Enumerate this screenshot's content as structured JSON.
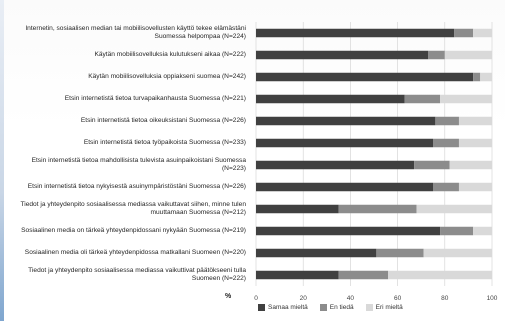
{
  "chart_data": {
    "type": "bar",
    "stacked": true,
    "orientation": "horizontal",
    "x_axis_label": "%",
    "xlim": [
      0,
      100
    ],
    "x_ticks": [
      "0",
      "20",
      "40",
      "60",
      "80",
      "100"
    ],
    "grid": true,
    "legend_position": "bottom",
    "categories": [
      "Internetin, sosiaalisen median tai mobiilisovellusten käyttö tekee elämästäni Suomessa helpompaa (N=224)",
      "Käytän mobiilisovelluksia kulutukseni aikaa (N=222)",
      "Käytän mobiilisovelluksia oppiakseni suomea (N=242)",
      "Etsin internetistä tietoa turvapaikanhausta Suomessa (N=221)",
      "Etsin internetistä tietoa oikeuksistani Suomessa (N=226)",
      "Etsin internetistä tietoa työpaikoista Suomessa (N=233)",
      "Etsin internetistä tietoa mahdollisista tulevista asuinpaikoistani Suomessa (N=223)",
      "Etsin internetistä tietoa nykyisestä asuinympäristöstäni Suomessa (N=226)",
      "Tiedot ja yhteydenpito sosiaalisessa mediassa vaikuttavat siihen, minne tulen muuttamaan Suomessa (N=212)",
      "Sosiaalinen media on tärkeä yhteydenpidossani nykyään Suomessa (N=219)",
      "Sosiaalinen media oli tärkeä yhteydenpidossa matkallani Suomeen (N=220)",
      "Tiedot ja yhteydenpito sosiaalisessa mediassa vaikuttivat päätökseeni tulla Suomeen (N=222)"
    ],
    "series": [
      {
        "name": "Samaa mieltä",
        "color": "#404040",
        "values": [
          84,
          73,
          92,
          63,
          76,
          75,
          67,
          75,
          35,
          78,
          51,
          35
        ]
      },
      {
        "name": "En tiedä",
        "color": "#8c8c8c",
        "values": [
          8,
          7,
          3,
          15,
          10,
          11,
          15,
          11,
          33,
          14,
          20,
          21
        ]
      },
      {
        "name": "Eri mieltä",
        "color": "#d9d9d9",
        "values": [
          8,
          20,
          5,
          22,
          14,
          14,
          18,
          14,
          32,
          8,
          29,
          44
        ]
      }
    ]
  }
}
